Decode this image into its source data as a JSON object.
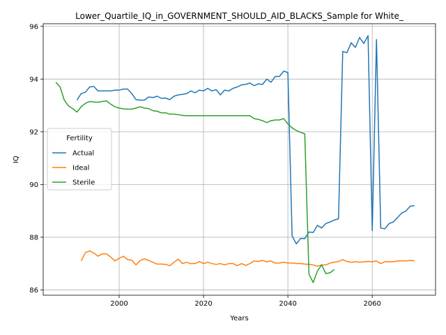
{
  "chart_data": {
    "type": "line",
    "title": "Lower_Quartile_IQ_in_GOVERNMENT_SHOULD_AID_BLACKS_Sample for White_",
    "xlabel": "Years",
    "ylabel": "IQ",
    "xlim": [
      1982,
      2075
    ],
    "ylim": [
      85.8,
      96.1
    ],
    "xticks": [
      2000,
      2020,
      2040,
      2060
    ],
    "yticks": [
      86,
      88,
      90,
      92,
      94,
      96
    ],
    "grid": true,
    "legend": {
      "title": "Fertility",
      "placement": "center-left"
    },
    "series": [
      {
        "name": "Actual",
        "color": "#1f77b4",
        "x": [
          1990,
          1991,
          1992,
          1993,
          1994,
          1995,
          1996,
          1997,
          1998,
          1999,
          2000,
          2001,
          2002,
          2003,
          2004,
          2005,
          2006,
          2007,
          2008,
          2009,
          2010,
          2011,
          2012,
          2013,
          2014,
          2015,
          2016,
          2017,
          2018,
          2019,
          2020,
          2021,
          2022,
          2023,
          2024,
          2025,
          2026,
          2027,
          2028,
          2029,
          2030,
          2031,
          2032,
          2033,
          2034,
          2035,
          2036,
          2037,
          2038,
          2039,
          2040,
          2041,
          2042,
          2043,
          2044,
          2045,
          2046,
          2047,
          2048,
          2049,
          2050,
          2051,
          2052,
          2053,
          2054,
          2055,
          2056,
          2057,
          2058,
          2059,
          2060,
          2061,
          2062,
          2063,
          2064,
          2065,
          2066,
          2067,
          2068,
          2069,
          2070
        ],
        "y": [
          93.2,
          93.45,
          93.5,
          93.7,
          93.72,
          93.55,
          93.55,
          93.55,
          93.55,
          93.58,
          93.58,
          93.62,
          93.62,
          93.45,
          93.22,
          93.2,
          93.2,
          93.32,
          93.3,
          93.35,
          93.27,
          93.28,
          93.22,
          93.35,
          93.4,
          93.42,
          93.45,
          93.55,
          93.48,
          93.58,
          93.55,
          93.65,
          93.55,
          93.6,
          93.4,
          93.58,
          93.55,
          93.65,
          93.7,
          93.78,
          93.8,
          93.85,
          93.75,
          93.82,
          93.8,
          94.0,
          93.88,
          94.1,
          94.1,
          94.3,
          94.25,
          88.05,
          87.75,
          87.95,
          87.95,
          88.2,
          88.18,
          88.45,
          88.35,
          88.52,
          88.58,
          88.65,
          88.7,
          95.05,
          95.0,
          95.38,
          95.2,
          95.58,
          95.35,
          95.65,
          88.25,
          95.5,
          88.35,
          88.32,
          88.52,
          88.58,
          88.75,
          88.92,
          89.0,
          89.18,
          89.2
        ]
      },
      {
        "name": "Ideal",
        "color": "#ff7f0e",
        "x": [
          1991,
          1992,
          1993,
          1994,
          1995,
          1996,
          1997,
          1998,
          1999,
          2000,
          2001,
          2002,
          2003,
          2004,
          2005,
          2006,
          2007,
          2008,
          2009,
          2010,
          2011,
          2012,
          2013,
          2014,
          2015,
          2016,
          2017,
          2018,
          2019,
          2020,
          2021,
          2022,
          2023,
          2024,
          2025,
          2026,
          2027,
          2028,
          2029,
          2030,
          2031,
          2032,
          2033,
          2034,
          2035,
          2036,
          2037,
          2038,
          2039,
          2040,
          2041,
          2042,
          2043,
          2044,
          2045,
          2046,
          2047,
          2048,
          2049,
          2050,
          2051,
          2052,
          2053,
          2054,
          2055,
          2056,
          2057,
          2058,
          2059,
          2060,
          2061,
          2062,
          2063,
          2064,
          2065,
          2066,
          2067,
          2068,
          2069,
          2070
        ],
        "y": [
          87.1,
          87.42,
          87.48,
          87.4,
          87.28,
          87.37,
          87.37,
          87.25,
          87.1,
          87.2,
          87.28,
          87.15,
          87.13,
          86.95,
          87.12,
          87.18,
          87.12,
          87.05,
          86.98,
          86.98,
          86.97,
          86.92,
          87.05,
          87.17,
          87.0,
          87.05,
          87.0,
          87.0,
          87.08,
          87.0,
          87.05,
          87.0,
          86.97,
          87.0,
          86.95,
          87.0,
          87.0,
          86.92,
          87.0,
          86.93,
          87.0,
          87.1,
          87.08,
          87.12,
          87.07,
          87.1,
          87.02,
          87.02,
          87.05,
          87.02,
          87.02,
          87.0,
          87.0,
          86.98,
          86.97,
          86.95,
          86.9,
          86.95,
          86.95,
          87.02,
          87.05,
          87.08,
          87.15,
          87.08,
          87.05,
          87.07,
          87.05,
          87.07,
          87.08,
          87.07,
          87.1,
          87.0,
          87.07,
          87.07,
          87.07,
          87.1,
          87.1,
          87.1,
          87.12,
          87.1
        ]
      },
      {
        "name": "Sterile",
        "color": "#2ca02c",
        "x": [
          1985,
          1986,
          1987,
          1988,
          1989,
          1990,
          1991,
          1992,
          1993,
          1994,
          1995,
          1996,
          1997,
          1998,
          1999,
          2000,
          2001,
          2002,
          2003,
          2004,
          2005,
          2006,
          2007,
          2008,
          2009,
          2010,
          2011,
          2012,
          2013,
          2014,
          2015,
          2016,
          2017,
          2018,
          2019,
          2020,
          2021,
          2022,
          2023,
          2024,
          2025,
          2026,
          2027,
          2028,
          2029,
          2030,
          2031,
          2032,
          2033,
          2034,
          2035,
          2036,
          2037,
          2038,
          2039,
          2040,
          2041,
          2042,
          2043,
          2044,
          2045,
          2046,
          2047,
          2048,
          2049,
          2050,
          2051
        ],
        "y": [
          93.88,
          93.7,
          93.2,
          92.98,
          92.88,
          92.75,
          92.95,
          93.08,
          93.15,
          93.13,
          93.12,
          93.15,
          93.17,
          93.05,
          92.95,
          92.9,
          92.87,
          92.86,
          92.86,
          92.9,
          92.95,
          92.9,
          92.88,
          92.8,
          92.78,
          92.72,
          92.72,
          92.67,
          92.67,
          92.65,
          92.62,
          92.61,
          92.61,
          92.61,
          92.61,
          92.61,
          92.61,
          92.61,
          92.61,
          92.61,
          92.61,
          92.61,
          92.61,
          92.61,
          92.61,
          92.61,
          92.61,
          92.5,
          92.47,
          92.42,
          92.35,
          92.42,
          92.45,
          92.45,
          92.5,
          92.3,
          92.15,
          92.05,
          91.98,
          91.92,
          86.6,
          86.28,
          86.72,
          86.95,
          86.62,
          86.65,
          86.78
        ]
      }
    ]
  }
}
